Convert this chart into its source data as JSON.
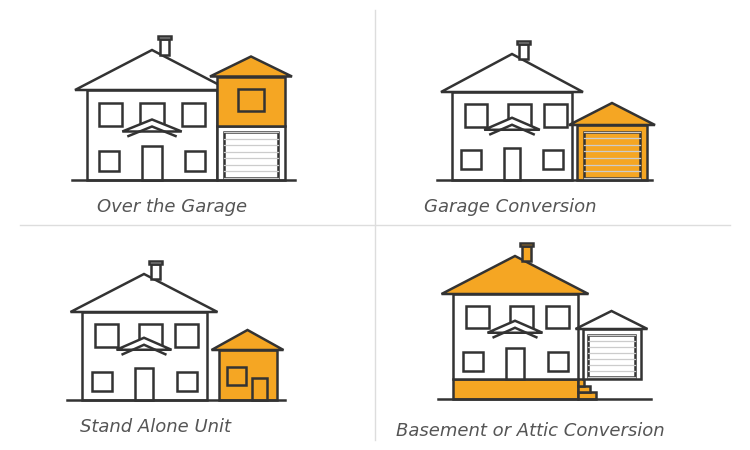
{
  "bg_color": "#ffffff",
  "line_color": "#333333",
  "orange_color": "#F5A623",
  "orange_dark": "#E09000",
  "gray_color": "#aaaaaa",
  "lw": 1.8,
  "labels": [
    "Over the Garage",
    "Garage Conversion",
    "Stand Alone Unit",
    "Basement or Attic Conversion"
  ],
  "label_fontsize": 13,
  "label_style": "italic"
}
